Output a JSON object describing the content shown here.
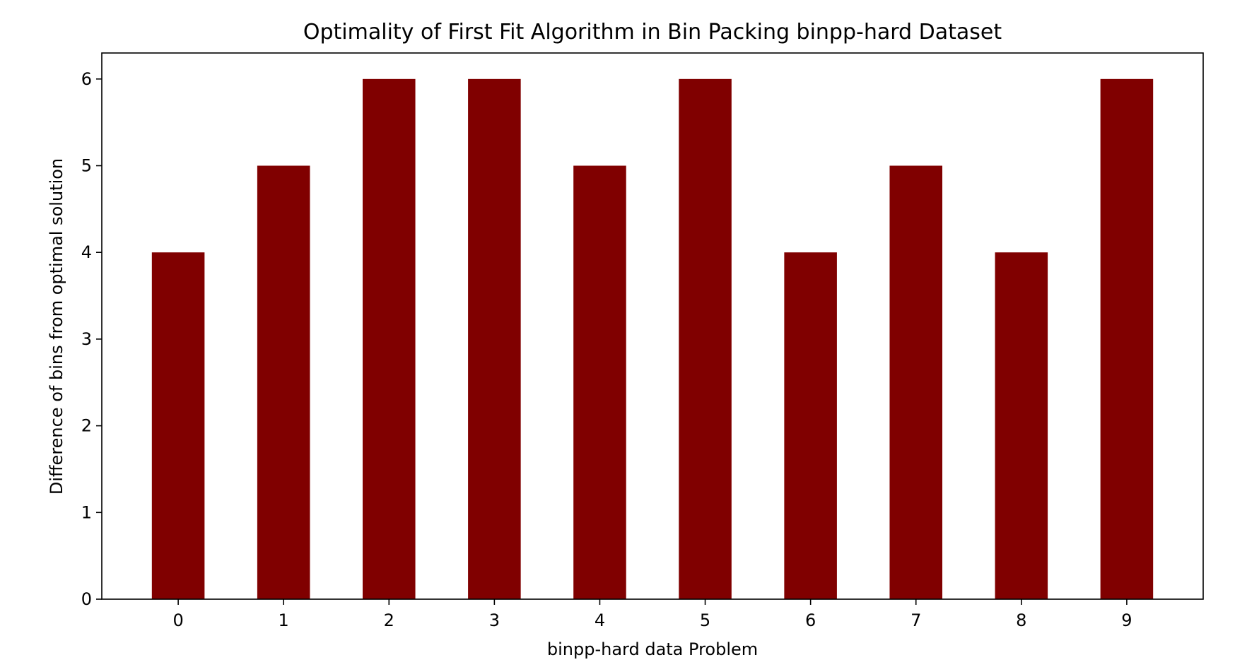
{
  "chart_data": {
    "type": "bar",
    "title": "Optimality of First Fit Algorithm in Bin Packing binpp-hard Dataset",
    "xlabel": "binpp-hard data Problem",
    "ylabel": "Difference of bins from optimal solution",
    "categories": [
      "0",
      "1",
      "2",
      "3",
      "4",
      "5",
      "6",
      "7",
      "8",
      "9"
    ],
    "values": [
      4,
      5,
      6,
      6,
      5,
      6,
      4,
      5,
      4,
      6
    ],
    "yticks": [
      "0",
      "1",
      "2",
      "3",
      "4",
      "5",
      "6"
    ],
    "ylim": [
      0,
      6.3
    ],
    "grid": false,
    "bar_color": "#800000"
  }
}
